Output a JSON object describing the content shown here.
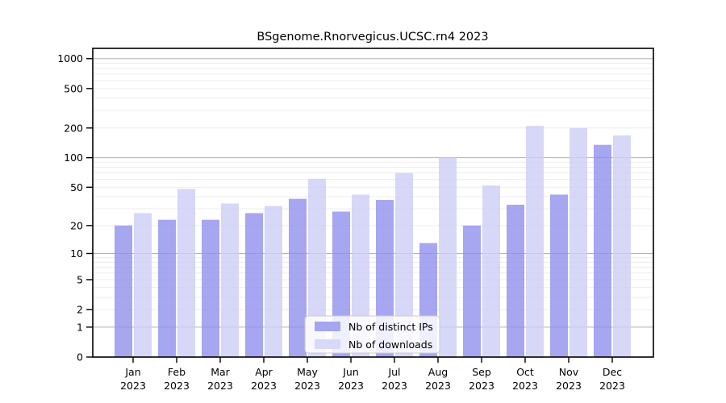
{
  "chart_data": {
    "type": "bar",
    "title": "BSgenome.Rnorvegicus.UCSC.rn4 2023",
    "categories": [
      {
        "month": "Jan",
        "year": "2023"
      },
      {
        "month": "Feb",
        "year": "2023"
      },
      {
        "month": "Mar",
        "year": "2023"
      },
      {
        "month": "Apr",
        "year": "2023"
      },
      {
        "month": "May",
        "year": "2023"
      },
      {
        "month": "Jun",
        "year": "2023"
      },
      {
        "month": "Jul",
        "year": "2023"
      },
      {
        "month": "Aug",
        "year": "2023"
      },
      {
        "month": "Sep",
        "year": "2023"
      },
      {
        "month": "Oct",
        "year": "2023"
      },
      {
        "month": "Nov",
        "year": "2023"
      },
      {
        "month": "Dec",
        "year": "2023"
      }
    ],
    "series": [
      {
        "name": "Nb of distinct IPs",
        "key": "distinct-ips",
        "color": "#9090ee",
        "legend_color": "#a5a5f0",
        "values": [
          20,
          23,
          23,
          27,
          38,
          28,
          37,
          13,
          20,
          33,
          42,
          135
        ]
      },
      {
        "name": "Nb of downloads",
        "key": "downloads",
        "color": "#cdcdf6",
        "legend_color": "#d8d8f8",
        "values": [
          27,
          48,
          34,
          32,
          61,
          42,
          70,
          100,
          52,
          210,
          200,
          168
        ]
      }
    ],
    "y_axis": {
      "ticks": [
        0,
        1,
        2,
        5,
        10,
        20,
        50,
        100,
        200,
        500,
        1000
      ],
      "scale": "log1p",
      "ylim": [
        0,
        1268
      ]
    },
    "x_axis": {
      "label": ""
    },
    "grid": {
      "major": "on",
      "minor": "on"
    },
    "legend_position": "inside-bottom-center"
  },
  "colors": {
    "background": "#ffffff",
    "axis": "#000000",
    "grid_major": "#b3b3b3",
    "grid_minor": "#ececec",
    "text": "#000000",
    "legend_border": "#cccccc",
    "legend_fill": "rgba(255,255,255,0.82)"
  }
}
